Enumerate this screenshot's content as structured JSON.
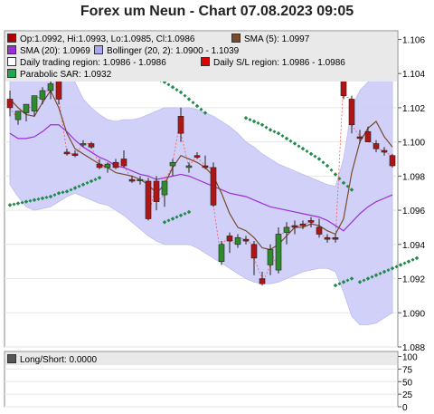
{
  "title": "Forex um Neun - Chart 07.08.2023 09:05",
  "legend": [
    {
      "label": "Op:1.0992, Hi:1.0993, Lo:1.0985, Cl:1.0986",
      "color": "#b00000"
    },
    {
      "label": "SMA (5): 1.0997",
      "color": "#7a4a2a"
    },
    {
      "label": "SMA (20): 1.0969",
      "color": "#9b2fd6"
    },
    {
      "label": "Bollinger (20, 2): 1.0900 - 1.1039",
      "color": "#a8a8f0"
    },
    {
      "label": "Daily trading region: 1.0986 - 1.0986",
      "color": "#ffffff"
    },
    {
      "label": "Daily S/L region: 1.0986 - 1.0986",
      "color": "#e00000"
    },
    {
      "label": "Parabolic SAR: 1.0932",
      "color": "#1fa84a"
    }
  ],
  "sub_legend": {
    "label": "Long/Short: 0.0000",
    "color": "#555555"
  },
  "colors": {
    "up": "#2e8b2e",
    "down": "#b01414",
    "band": "#ccccf8",
    "sma5": "#7a4a2a",
    "sma20": "#9b2fd6",
    "sar": "#1f8a4a",
    "connector": "#ff5555"
  },
  "chart_data": {
    "type": "line",
    "subtype": "candlestick",
    "title": "Forex um Neun - Chart 07.08.2023 09:05",
    "ylim": [
      1.088,
      1.1065
    ],
    "y_ticks": [
      1.088,
      1.09,
      1.092,
      1.094,
      1.096,
      1.098,
      1.1,
      1.102,
      1.104,
      1.106
    ],
    "y_tick_labels": [
      "1.088",
      "1.090",
      "1.092",
      "1.094",
      "1.096",
      "1.098",
      "1.100",
      "1.102",
      "1.104",
      "1.106"
    ],
    "candles": [
      {
        "o": 1.1025,
        "h": 1.103,
        "l": 1.1015,
        "c": 1.102
      },
      {
        "o": 1.1013,
        "h": 1.1018,
        "l": 1.101,
        "c": 1.1018
      },
      {
        "o": 1.1017,
        "h": 1.1022,
        "l": 1.1012,
        "c": 1.1022
      },
      {
        "o": 1.1018,
        "h": 1.1027,
        "l": 1.1015,
        "c": 1.1027
      },
      {
        "o": 1.1025,
        "h": 1.1032,
        "l": 1.1022,
        "c": 1.103
      },
      {
        "o": 1.103,
        "h": 1.1038,
        "l": 1.1025,
        "c": 1.1034
      },
      {
        "o": 1.1043,
        "h": 1.1045,
        "l": 1.1022,
        "c": 1.1025
      },
      {
        "o": 1.0994,
        "h": 1.0996,
        "l": 1.0992,
        "c": 1.0993
      },
      {
        "o": 1.0993,
        "h": 1.0995,
        "l": 1.0991,
        "c": 1.0992
      },
      {
        "o": 1.0999,
        "h": 1.1001,
        "l": 1.0997,
        "c": 1.0999
      },
      {
        "o": 1.0999,
        "h": 1.1,
        "l": 1.0996,
        "c": 1.0997
      },
      {
        "o": 1.0987,
        "h": 1.099,
        "l": 1.0984,
        "c": 1.0985
      },
      {
        "o": 1.0985,
        "h": 1.0988,
        "l": 1.0982,
        "c": 1.0987
      },
      {
        "o": 1.0988,
        "h": 1.099,
        "l": 1.0984,
        "c": 1.0985
      },
      {
        "o": 1.099,
        "h": 1.0995,
        "l": 1.0985,
        "c": 1.0986
      },
      {
        "o": 1.0978,
        "h": 1.098,
        "l": 1.0976,
        "c": 1.0977
      },
      {
        "o": 1.0978,
        "h": 1.098,
        "l": 1.0975,
        "c": 1.0978
      },
      {
        "o": 1.0977,
        "h": 1.0979,
        "l": 1.0954,
        "c": 1.0955
      },
      {
        "o": 1.0977,
        "h": 1.098,
        "l": 1.096,
        "c": 1.0965
      },
      {
        "o": 1.0969,
        "h": 1.0977,
        "l": 1.0962,
        "c": 1.0977
      },
      {
        "o": 1.0986,
        "h": 1.099,
        "l": 1.098,
        "c": 1.0988
      },
      {
        "o": 1.1015,
        "h": 1.102,
        "l": 1.1,
        "c": 1.1005
      },
      {
        "o": 1.0985,
        "h": 1.0988,
        "l": 1.0982,
        "c": 1.0986
      },
      {
        "o": 1.0992,
        "h": 1.0994,
        "l": 1.099,
        "c": 1.0991
      },
      {
        "o": 1.0986,
        "h": 1.0992,
        "l": 1.0984,
        "c": 1.0985
      },
      {
        "o": 1.0985,
        "h": 1.0988,
        "l": 1.0962,
        "c": 1.0963
      },
      {
        "o": 1.093,
        "h": 1.0942,
        "l": 1.0928,
        "c": 1.094
      },
      {
        "o": 1.0945,
        "h": 1.0947,
        "l": 1.0935,
        "c": 1.0942
      },
      {
        "o": 1.094,
        "h": 1.0946,
        "l": 1.0938,
        "c": 1.0944
      },
      {
        "o": 1.0943,
        "h": 1.0945,
        "l": 1.094,
        "c": 1.0942
      },
      {
        "o": 1.094,
        "h": 1.0942,
        "l": 1.0922,
        "c": 1.0932
      },
      {
        "o": 1.092,
        "h": 1.0924,
        "l": 1.0916,
        "c": 1.0917
      },
      {
        "o": 1.0928,
        "h": 1.094,
        "l": 1.0922,
        "c": 1.0937
      },
      {
        "o": 1.0925,
        "h": 1.095,
        "l": 1.0923,
        "c": 1.0946
      },
      {
        "o": 1.0947,
        "h": 1.0953,
        "l": 1.094,
        "c": 1.095
      },
      {
        "o": 1.0951,
        "h": 1.0954,
        "l": 1.0946,
        "c": 1.095
      },
      {
        "o": 1.0952,
        "h": 1.0954,
        "l": 1.0949,
        "c": 1.0951
      },
      {
        "o": 1.0954,
        "h": 1.0956,
        "l": 1.095,
        "c": 1.0953
      },
      {
        "o": 1.095,
        "h": 1.0955,
        "l": 1.0944,
        "c": 1.0946
      },
      {
        "o": 1.0944,
        "h": 1.0946,
        "l": 1.0941,
        "c": 1.0943
      },
      {
        "o": 1.0944,
        "h": 1.0946,
        "l": 1.0941,
        "c": 1.0943
      },
      {
        "o": 1.1037,
        "h": 1.1041,
        "l": 1.1025,
        "c": 1.1027
      },
      {
        "o": 1.1025,
        "h": 1.1027,
        "l": 1.1005,
        "c": 1.101
      },
      {
        "o": 1.1003,
        "h": 1.1007,
        "l": 1.0999,
        "c": 1.1002
      },
      {
        "o": 1.1006,
        "h": 1.1009,
        "l": 1.1,
        "c": 1.1
      },
      {
        "o": 1.0999,
        "h": 1.1001,
        "l": 1.0994,
        "c": 1.0996
      },
      {
        "o": 1.0995,
        "h": 1.0997,
        "l": 1.0992,
        "c": 1.0994
      },
      {
        "o": 1.0992,
        "h": 1.0993,
        "l": 1.0985,
        "c": 1.0986
      }
    ],
    "sma5": [
      1.1025,
      1.102,
      1.1016,
      1.1015,
      1.1023,
      1.103,
      1.102,
      1.1005,
      1.0996,
      1.0993,
      1.099,
      1.0987,
      1.0985,
      1.0982,
      1.0981,
      1.098,
      1.0978,
      1.0975,
      1.097,
      1.0975,
      1.0985,
      1.0992,
      1.099,
      1.0988,
      1.0985,
      1.098,
      1.097,
      1.0958,
      1.095,
      1.0948,
      1.0944,
      1.0938,
      1.0937,
      1.094,
      1.0945,
      1.095,
      1.095,
      1.0952,
      1.0951,
      1.0948,
      1.0946,
      1.0955,
      1.0982,
      1.1,
      1.1008,
      1.1012,
      1.1003,
      1.0997
    ],
    "sma20": [
      1.1005,
      1.1002,
      1.1002,
      1.1003,
      1.1006,
      1.101,
      1.101,
      1.1006,
      1.1001,
      1.0997,
      1.0994,
      1.0991,
      1.0989,
      1.0986,
      1.0985,
      1.0983,
      1.0981,
      1.098,
      1.0978,
      1.0979,
      1.098,
      1.0981,
      1.098,
      1.0978,
      1.0976,
      1.0974,
      1.0972,
      1.097,
      1.0969,
      1.0968,
      1.0966,
      1.0964,
      1.0962,
      1.0961,
      1.096,
      1.0959,
      1.0958,
      1.0957,
      1.0956,
      1.0954,
      1.0951,
      1.0948,
      1.0953,
      1.0958,
      1.0962,
      1.0965,
      1.0967,
      1.0969
    ],
    "bb_upper": [
      1.1035,
      1.104,
      1.1043,
      1.1045,
      1.1047,
      1.1048,
      1.1047,
      1.1042,
      1.1035,
      1.1025,
      1.102,
      1.1016,
      1.1013,
      1.1012,
      1.1013,
      1.1013,
      1.1014,
      1.1016,
      1.1018,
      1.102,
      1.102,
      1.102,
      1.102,
      1.1019,
      1.1017,
      1.1015,
      1.1012,
      1.1009,
      1.1005,
      1.1,
      1.0997,
      1.0993,
      1.099,
      1.0987,
      1.0985,
      1.0983,
      1.0981,
      1.0979,
      1.0977,
      1.0975,
      1.0974,
      1.099,
      1.102,
      1.103,
      1.1035,
      1.1038,
      1.1039,
      1.1039
    ],
    "bb_lower": [
      1.0975,
      1.0968,
      1.0962,
      1.096,
      1.0961,
      1.0962,
      1.0965,
      1.0968,
      1.097,
      1.0968,
      1.0966,
      1.0964,
      1.0963,
      1.096,
      1.0957,
      1.0953,
      1.0949,
      1.0945,
      1.0942,
      1.094,
      1.094,
      1.094,
      1.094,
      1.0938,
      1.0935,
      1.0932,
      1.0929,
      1.0926,
      1.0923,
      1.092,
      1.0918,
      1.0917,
      1.0917,
      1.0918,
      1.092,
      1.0922,
      1.0924,
      1.0925,
      1.0926,
      1.0926,
      1.0924,
      1.0912,
      1.0898,
      1.0893,
      1.0893,
      1.0894,
      1.0897,
      1.09
    ],
    "sar_segments": [
      {
        "start": 0,
        "values": [
          1.0963,
          1.0964,
          1.0965,
          1.0966,
          1.0967,
          1.0968,
          1.097,
          1.0971,
          1.0973,
          1.0975,
          1.0977,
          1.0979
        ]
      },
      {
        "start": 14,
        "values": [
          1.1045,
          1.1044,
          1.1042,
          1.104,
          1.1037,
          1.1035,
          1.1032,
          1.1029,
          1.1025,
          1.1021,
          1.1017
        ]
      },
      {
        "start": 29,
        "values": [
          1.1014,
          1.1012,
          1.101,
          1.1007,
          1.1005,
          1.1002,
          1.0999,
          1.0996,
          1.0993,
          1.099,
          1.0986,
          1.0981,
          1.0976,
          1.0972
        ]
      },
      {
        "start": 43,
        "values": [
          1.0918,
          1.092,
          1.0922,
          1.0924,
          1.0926,
          1.0928,
          1.093,
          1.0932
        ]
      }
    ],
    "sar_extra": [
      {
        "start": 19,
        "values": [
          1.0953,
          1.0955,
          1.0957,
          1.0959
        ]
      },
      {
        "start": 40,
        "values": [
          1.0916,
          1.0918,
          1.092
        ]
      }
    ],
    "sub_panel": {
      "label": "Long/Short: 0.0000",
      "ylim": [
        0,
        110
      ],
      "y_ticks": [
        0,
        25,
        50,
        75,
        100
      ],
      "y_tick_labels": [
        "0",
        "25",
        "50",
        "75",
        "100"
      ],
      "values": [
        0
      ]
    }
  }
}
